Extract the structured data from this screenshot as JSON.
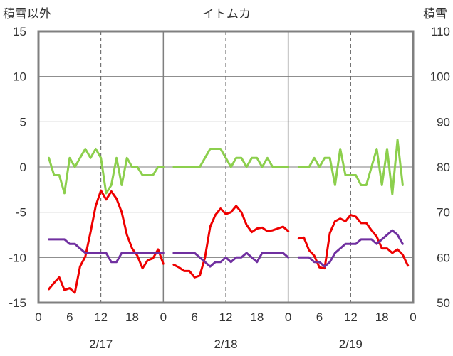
{
  "chart_data": {
    "type": "line",
    "title": "イトムカ",
    "left_axis_label": "積雪以外",
    "right_axis_label": "積雪",
    "left_ylim": [
      -15,
      15
    ],
    "left_yticks": [
      "15",
      "10",
      "5",
      "0",
      "-5",
      "-10",
      "-15"
    ],
    "right_ylim": [
      50,
      110
    ],
    "right_yticks": [
      "110",
      "100",
      "90",
      "80",
      "70",
      "60",
      "50"
    ],
    "x_hour_ticks": [
      "0",
      "6",
      "12",
      "18",
      "0",
      "6",
      "12",
      "18",
      "0",
      "6",
      "12",
      "18",
      "0"
    ],
    "dates": [
      "2/17",
      "2/18",
      "2/19"
    ],
    "grid": true,
    "series": [
      {
        "key": "temperature",
        "axis": "left",
        "color": "#ee0000",
        "segments": [
          [
            [
              2,
              -13.5
            ],
            [
              3,
              -12.8
            ],
            [
              4,
              -12.2
            ],
            [
              5,
              -13.6
            ],
            [
              6,
              -13.4
            ],
            [
              7,
              -13.9
            ],
            [
              8,
              -11
            ],
            [
              9,
              -9.9
            ],
            [
              10,
              -7.2
            ],
            [
              11,
              -4.3
            ],
            [
              12,
              -2.6
            ],
            [
              13,
              -3.6
            ],
            [
              14,
              -2.7
            ],
            [
              15,
              -3.5
            ],
            [
              16,
              -5
            ],
            [
              17,
              -7.5
            ],
            [
              18,
              -9
            ],
            [
              19,
              -9.8
            ],
            [
              20,
              -11.2
            ],
            [
              21,
              -10.3
            ],
            [
              22,
              -10.1
            ],
            [
              23,
              -9.1
            ],
            [
              24,
              -10.7
            ]
          ],
          [
            [
              26,
              -10.8
            ],
            [
              27,
              -11.1
            ],
            [
              28,
              -11.5
            ],
            [
              29,
              -11.5
            ],
            [
              30,
              -12.2
            ],
            [
              31,
              -12
            ],
            [
              32,
              -10
            ],
            [
              33,
              -6.6
            ],
            [
              34,
              -5.3
            ],
            [
              35,
              -4.6
            ],
            [
              36,
              -5.2
            ],
            [
              37,
              -5
            ],
            [
              38,
              -4.3
            ],
            [
              39,
              -5
            ],
            [
              40,
              -6.4
            ],
            [
              41,
              -7.2
            ],
            [
              42,
              -6.8
            ],
            [
              43,
              -6.7
            ],
            [
              44,
              -7.1
            ],
            [
              45,
              -7
            ],
            [
              46,
              -6.8
            ],
            [
              47,
              -6.6
            ],
            [
              48,
              -7.1
            ]
          ],
          [
            [
              50,
              -7.9
            ],
            [
              51,
              -7.8
            ],
            [
              52,
              -9.2
            ],
            [
              53,
              -9.8
            ],
            [
              54,
              -11.1
            ],
            [
              55,
              -11.2
            ],
            [
              56,
              -7.3
            ],
            [
              57,
              -6
            ],
            [
              58,
              -5.7
            ],
            [
              59,
              -6
            ],
            [
              60,
              -5.3
            ],
            [
              61,
              -5.5
            ],
            [
              62,
              -6.2
            ],
            [
              63,
              -6.2
            ],
            [
              64,
              -7
            ],
            [
              65,
              -7.7
            ],
            [
              66,
              -9
            ],
            [
              67,
              -9
            ],
            [
              68,
              -9.5
            ],
            [
              69,
              -9.1
            ],
            [
              70,
              -9.7
            ],
            [
              71,
              -10.9
            ]
          ]
        ]
      },
      {
        "key": "humidity-or-other",
        "axis": "left",
        "color": "#8ccf4d",
        "segments": [
          [
            [
              2,
              1
            ],
            [
              3,
              -0.9
            ],
            [
              4,
              -0.9
            ],
            [
              5,
              -2.9
            ],
            [
              6,
              1
            ],
            [
              7,
              0
            ],
            [
              8,
              1
            ],
            [
              9,
              2
            ],
            [
              10,
              1
            ],
            [
              11,
              2
            ],
            [
              12,
              1
            ],
            [
              13,
              -2.9
            ],
            [
              14,
              -2
            ],
            [
              15,
              1
            ],
            [
              16,
              -2
            ],
            [
              17,
              1
            ],
            [
              18,
              0
            ],
            [
              19,
              0
            ],
            [
              20,
              -0.9
            ],
            [
              21,
              -0.9
            ],
            [
              22,
              -0.9
            ],
            [
              23,
              0
            ],
            [
              24,
              0
            ]
          ],
          [
            [
              26,
              0
            ],
            [
              27,
              0
            ],
            [
              28,
              0
            ],
            [
              29,
              0
            ],
            [
              30,
              0
            ],
            [
              31,
              0
            ],
            [
              32,
              1
            ],
            [
              33,
              2
            ],
            [
              34,
              2
            ],
            [
              35,
              2
            ],
            [
              36,
              1
            ],
            [
              37,
              0
            ],
            [
              38,
              1
            ],
            [
              39,
              1
            ],
            [
              40,
              0
            ],
            [
              41,
              1
            ],
            [
              42,
              1
            ],
            [
              43,
              0
            ],
            [
              44,
              1
            ],
            [
              45,
              0
            ],
            [
              46,
              0
            ],
            [
              47,
              0
            ],
            [
              48,
              0
            ]
          ],
          [
            [
              50,
              0
            ],
            [
              51,
              0
            ],
            [
              52,
              0
            ],
            [
              53,
              1
            ],
            [
              54,
              0
            ],
            [
              55,
              1
            ],
            [
              56,
              1
            ],
            [
              57,
              -2
            ],
            [
              58,
              2
            ],
            [
              59,
              -0.9
            ],
            [
              60,
              -0.9
            ],
            [
              61,
              -0.9
            ],
            [
              62,
              -2
            ],
            [
              63,
              -2
            ],
            [
              64,
              0
            ],
            [
              65,
              2
            ],
            [
              66,
              -2
            ],
            [
              67,
              2
            ],
            [
              68,
              -3
            ],
            [
              69,
              3
            ],
            [
              70,
              -2
            ]
          ]
        ]
      },
      {
        "key": "snow-depth",
        "axis": "right",
        "color": "#7030a0",
        "segments": [
          [
            [
              2,
              64
            ],
            [
              3,
              64
            ],
            [
              4,
              64
            ],
            [
              5,
              64
            ],
            [
              6,
              63
            ],
            [
              7,
              63
            ],
            [
              8,
              62
            ],
            [
              9,
              61
            ],
            [
              10,
              61
            ],
            [
              11,
              61
            ],
            [
              12,
              61
            ],
            [
              13,
              61
            ],
            [
              14,
              59
            ],
            [
              15,
              59
            ],
            [
              16,
              61
            ],
            [
              17,
              61
            ],
            [
              18,
              61
            ],
            [
              19,
              61
            ],
            [
              20,
              61
            ],
            [
              21,
              61
            ],
            [
              22,
              61
            ],
            [
              23,
              61
            ],
            [
              24,
              61
            ]
          ],
          [
            [
              26,
              61
            ],
            [
              27,
              61
            ],
            [
              28,
              61
            ],
            [
              29,
              61
            ],
            [
              30,
              61
            ],
            [
              31,
              60
            ],
            [
              32,
              59
            ],
            [
              33,
              58
            ],
            [
              34,
              59
            ],
            [
              35,
              59
            ],
            [
              36,
              60
            ],
            [
              37,
              59
            ],
            [
              38,
              60
            ],
            [
              39,
              60
            ],
            [
              40,
              61
            ],
            [
              41,
              60
            ],
            [
              42,
              59
            ],
            [
              43,
              61
            ],
            [
              44,
              61
            ],
            [
              45,
              61
            ],
            [
              46,
              61
            ],
            [
              47,
              61
            ],
            [
              48,
              60
            ]
          ],
          [
            [
              50,
              60
            ],
            [
              51,
              60
            ],
            [
              52,
              60
            ],
            [
              53,
              59
            ],
            [
              54,
              59
            ],
            [
              55,
              58
            ],
            [
              56,
              59
            ],
            [
              57,
              61
            ],
            [
              58,
              62
            ],
            [
              59,
              63
            ],
            [
              60,
              63
            ],
            [
              61,
              63
            ],
            [
              62,
              64
            ],
            [
              63,
              64
            ],
            [
              64,
              64
            ],
            [
              65,
              63
            ],
            [
              66,
              64
            ],
            [
              67,
              65
            ],
            [
              68,
              66
            ],
            [
              69,
              65
            ],
            [
              70,
              63
            ]
          ]
        ]
      }
    ]
  }
}
